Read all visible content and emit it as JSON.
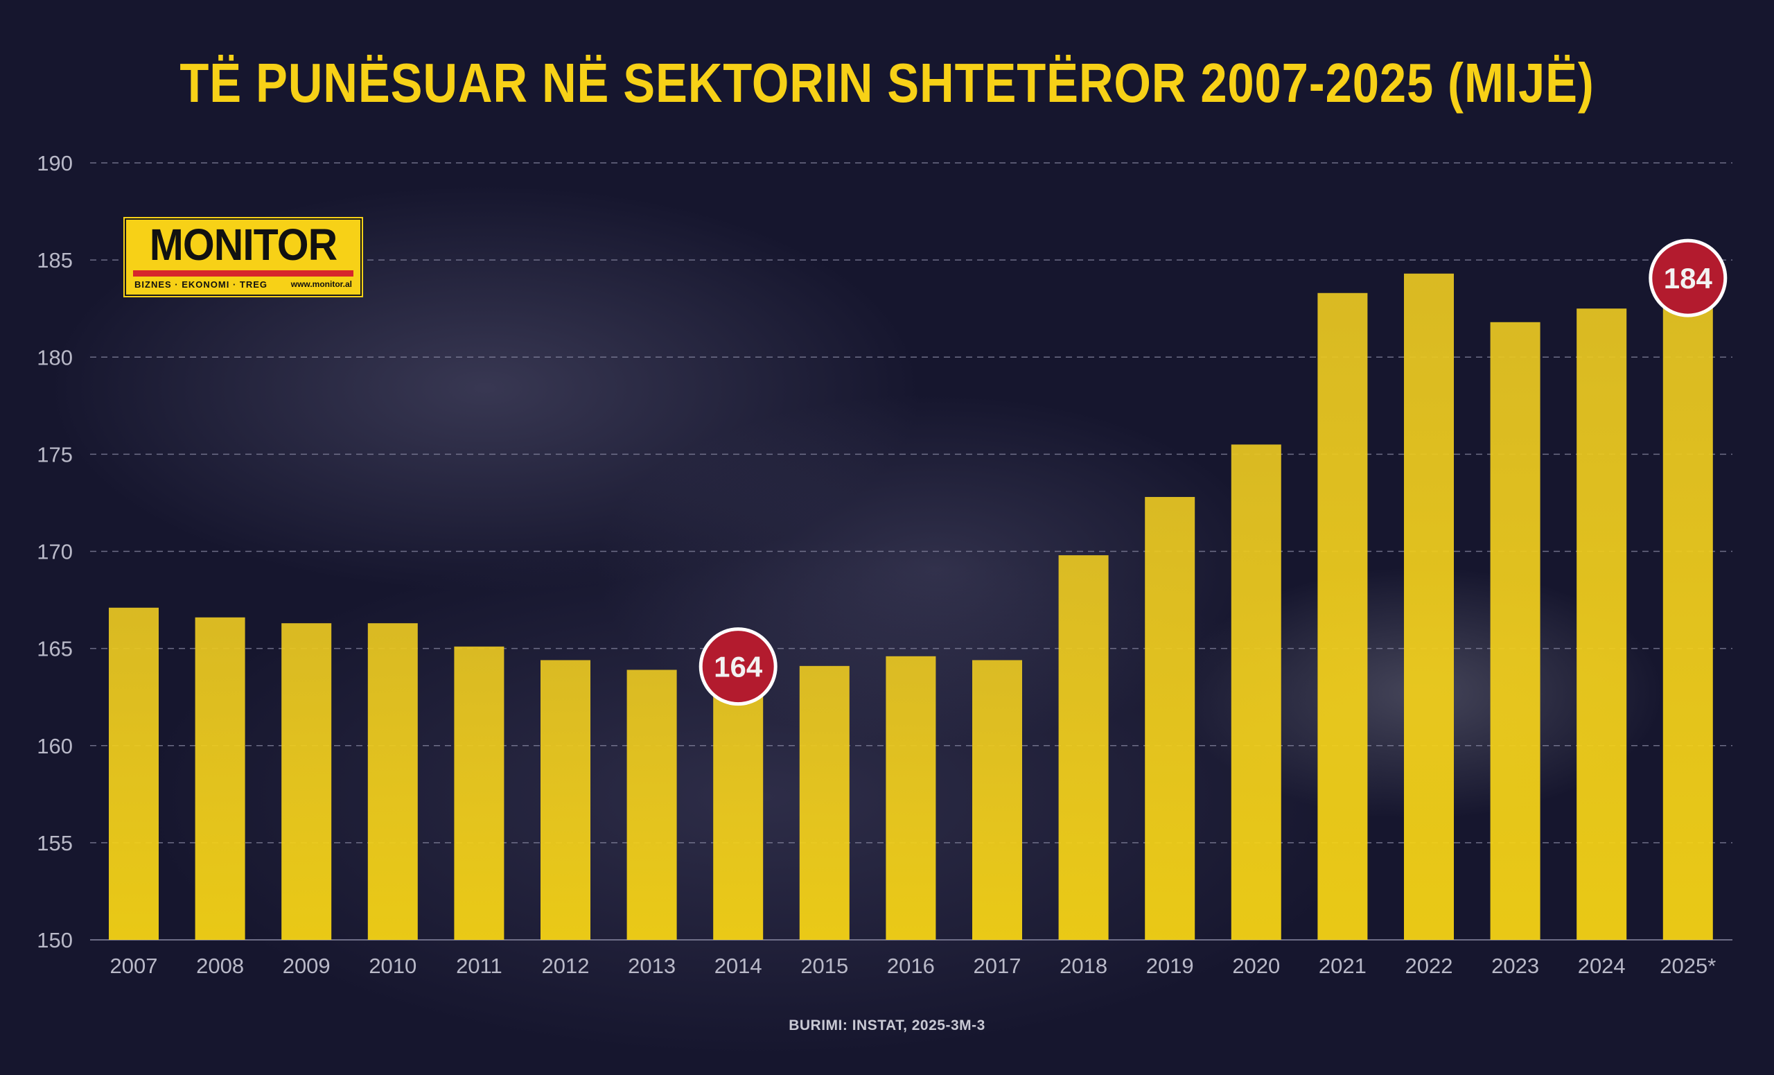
{
  "title": "TË PUNËSUAR NË SEKTORIN SHTETËROR 2007-2025 (MIJË)",
  "source": "BURIMI: INSTAT, 2025-3M-3",
  "logo": {
    "name": "MONITOR",
    "tagline": "BIZNES · EKONOMI · TREG",
    "url": "www.monitor.al"
  },
  "colors": {
    "background": "#16162e",
    "bar": "#f7d117",
    "title": "#f7d117",
    "highlight": "#b31b2e"
  },
  "chart_data": {
    "type": "bar",
    "title": "TË PUNËSUAR NË SEKTORIN SHTETËROR 2007-2025 (MIJË)",
    "categories": [
      "2007",
      "2008",
      "2009",
      "2010",
      "2011",
      "2012",
      "2013",
      "2014",
      "2015",
      "2016",
      "2017",
      "2018",
      "2019",
      "2020",
      "2021",
      "2022",
      "2023",
      "2024",
      "2025*"
    ],
    "values": [
      167.1,
      166.6,
      166.3,
      166.3,
      165.1,
      164.4,
      163.9,
      164.0,
      164.1,
      164.6,
      164.4,
      169.8,
      172.8,
      175.5,
      183.3,
      184.3,
      181.8,
      182.5,
      184.0
    ],
    "ylim": [
      150,
      190
    ],
    "yticks": [
      150,
      155,
      160,
      165,
      170,
      175,
      180,
      185,
      190
    ],
    "grid": true,
    "annotations": [
      {
        "category": "2014",
        "label": "164"
      },
      {
        "category": "2025*",
        "label": "184"
      }
    ]
  }
}
